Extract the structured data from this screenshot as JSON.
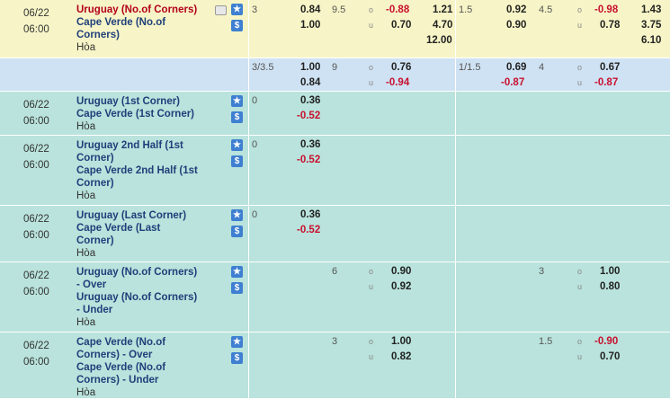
{
  "symbols": {
    "over": "o",
    "under": "u",
    "star": "★",
    "dollar": "$"
  },
  "rows": [
    {
      "date": "06/22",
      "time": "06:00",
      "home": "Uruguay (No.of Corners)",
      "away": "Cape Verde (No.of Corners)",
      "draw": "Hòa",
      "ah_line": "3",
      "ah_home": "0.84",
      "ah_away": "1.00",
      "ou_line": "9.5",
      "ou_over": "-0.88",
      "ou_under": "0.70",
      "x1": "1.21",
      "x2": "4.70",
      "xx": "12.00",
      "h_ah_line": "1.5",
      "h_ah_home": "0.92",
      "h_ah_away": "0.90",
      "h_ou_line": "4.5",
      "h_ou_over": "-0.98",
      "h_ou_under": "0.78",
      "h_x1": "1.43",
      "h_x2": "3.75",
      "h_xx": "6.10"
    },
    {
      "ah_line": "3/3.5",
      "ah_home": "1.00",
      "ah_away": "0.84",
      "ou_line": "9",
      "ou_over": "0.76",
      "ou_under": "-0.94",
      "h_ah_line": "1/1.5",
      "h_ah_home": "0.69",
      "h_ah_away": "-0.87",
      "h_ou_line": "4",
      "h_ou_over": "0.67",
      "h_ou_under": "-0.87"
    },
    {
      "date": "06/22",
      "time": "06:00",
      "home": "Uruguay (1st Corner)",
      "away": "Cape Verde (1st Corner)",
      "draw": "Hòa",
      "ah_line": "0",
      "ah_home": "0.36",
      "ah_away": "-0.52"
    },
    {
      "date": "06/22",
      "time": "06:00",
      "home": "Uruguay 2nd Half (1st Corner)",
      "away": "Cape Verde 2nd Half (1st Corner)",
      "draw": "Hòa",
      "ah_line": "0",
      "ah_home": "0.36",
      "ah_away": "-0.52"
    },
    {
      "date": "06/22",
      "time": "06:00",
      "home": "Uruguay (Last Corner)",
      "away": "Cape Verde (Last Corner)",
      "draw": "Hòa",
      "ah_line": "0",
      "ah_home": "0.36",
      "ah_away": "-0.52"
    },
    {
      "date": "06/22",
      "time": "06:00",
      "home": "Uruguay (No.of Corners) - Over",
      "away": "Uruguay (No.of Corners) - Under",
      "draw": "Hòa",
      "ou_line": "6",
      "ou_over": "0.90",
      "ou_under": "0.92",
      "h_ou_line": "3",
      "h_ou_over": "1.00",
      "h_ou_under": "0.80"
    },
    {
      "date": "06/22",
      "time": "06:00",
      "home": "Cape Verde (No.of Corners) - Over",
      "away": "Cape Verde (No.of Corners) - Under",
      "draw": "Hòa",
      "ou_line": "3",
      "ou_over": "1.00",
      "ou_under": "0.82",
      "h_ou_line": "1.5",
      "h_ou_over": "-0.90",
      "h_ou_under": "0.70"
    }
  ]
}
